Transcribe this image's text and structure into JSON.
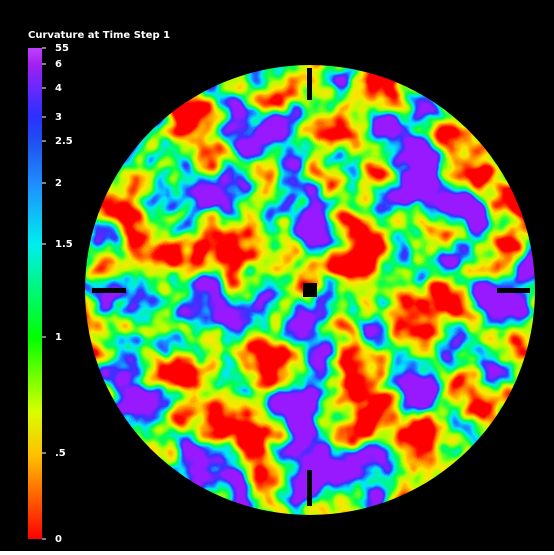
{
  "colorbar": {
    "title": "Curvature at Time Step 1",
    "ticks": [
      "55",
      "6",
      "4",
      "3",
      "2.5",
      "2",
      "1.5",
      "1",
      ".5",
      "0"
    ]
  }
}
